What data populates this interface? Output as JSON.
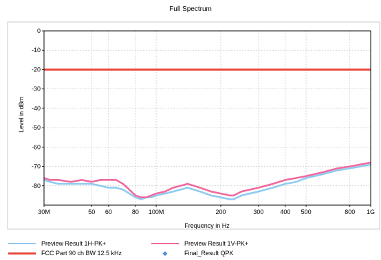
{
  "chart_data": {
    "type": "line",
    "title": "Full Spectrum",
    "xlabel": "Frequency in Hz",
    "ylabel": "Level in dBm",
    "x_scale": "log",
    "xlim": [
      30000000,
      1000000000
    ],
    "ylim": [
      -90,
      0
    ],
    "x_ticks": [
      {
        "value": 30000000,
        "label": "30M"
      },
      {
        "value": 50000000,
        "label": "50"
      },
      {
        "value": 60000000,
        "label": "60"
      },
      {
        "value": 80000000,
        "label": "80"
      },
      {
        "value": 100000000,
        "label": "100M"
      },
      {
        "value": 200000000,
        "label": "200"
      },
      {
        "value": 300000000,
        "label": "300"
      },
      {
        "value": 400000000,
        "label": "400"
      },
      {
        "value": 500000000,
        "label": "500"
      },
      {
        "value": 800000000,
        "label": "800"
      },
      {
        "value": 1000000000,
        "label": "1G"
      }
    ],
    "y_ticks": [
      0,
      -10,
      -20,
      -30,
      -40,
      -50,
      -60,
      -70,
      -80
    ],
    "grid": true,
    "legend_placement": "bottom",
    "series": [
      {
        "name": "Preview Result 1H-PK+",
        "color": "#8ecbf0",
        "x": [
          30000000,
          32000000,
          35000000,
          40000000,
          45000000,
          50000000,
          55000000,
          60000000,
          65000000,
          70000000,
          75000000,
          80000000,
          85000000,
          90000000,
          95000000,
          100000000,
          110000000,
          120000000,
          130000000,
          140000000,
          150000000,
          160000000,
          170000000,
          180000000,
          200000000,
          220000000,
          230000000,
          250000000,
          300000000,
          350000000,
          400000000,
          450000000,
          500000000,
          600000000,
          700000000,
          800000000,
          900000000,
          1000000000
        ],
        "y": [
          -77,
          -78,
          -79,
          -79,
          -79,
          -79,
          -80,
          -81,
          -81,
          -82,
          -84,
          -86,
          -87,
          -86,
          -86,
          -85,
          -84,
          -83,
          -82,
          -81,
          -82,
          -83,
          -84,
          -85,
          -86,
          -87,
          -87,
          -85,
          -83,
          -81,
          -79,
          -78,
          -76,
          -74,
          -72,
          -71,
          -70,
          -69
        ]
      },
      {
        "name": "Preview Result 1V-PK+",
        "color": "#f0699e",
        "x": [
          30000000,
          32000000,
          35000000,
          40000000,
          45000000,
          50000000,
          55000000,
          60000000,
          65000000,
          70000000,
          75000000,
          80000000,
          85000000,
          90000000,
          95000000,
          100000000,
          110000000,
          120000000,
          130000000,
          140000000,
          150000000,
          160000000,
          170000000,
          180000000,
          200000000,
          220000000,
          230000000,
          250000000,
          300000000,
          350000000,
          400000000,
          450000000,
          500000000,
          600000000,
          700000000,
          800000000,
          900000000,
          1000000000
        ],
        "y": [
          -76,
          -77,
          -77,
          -78,
          -77,
          -78,
          -77,
          -77,
          -77,
          -79,
          -82,
          -85,
          -86,
          -86,
          -85,
          -84,
          -83,
          -81,
          -80,
          -79,
          -80,
          -81,
          -82,
          -83,
          -84,
          -85,
          -85,
          -83,
          -81,
          -79,
          -77,
          -76,
          -75,
          -73,
          -71,
          -70,
          -69,
          -68
        ]
      },
      {
        "name": "FCC Part 90 ch BW 12.5 kHz",
        "color": "#e8453c",
        "x": [
          30000000,
          1000000000
        ],
        "y": [
          -20,
          -20
        ]
      },
      {
        "name": "Final_Result QPK",
        "color": "#4a90d9",
        "x": [],
        "y": []
      }
    ]
  }
}
